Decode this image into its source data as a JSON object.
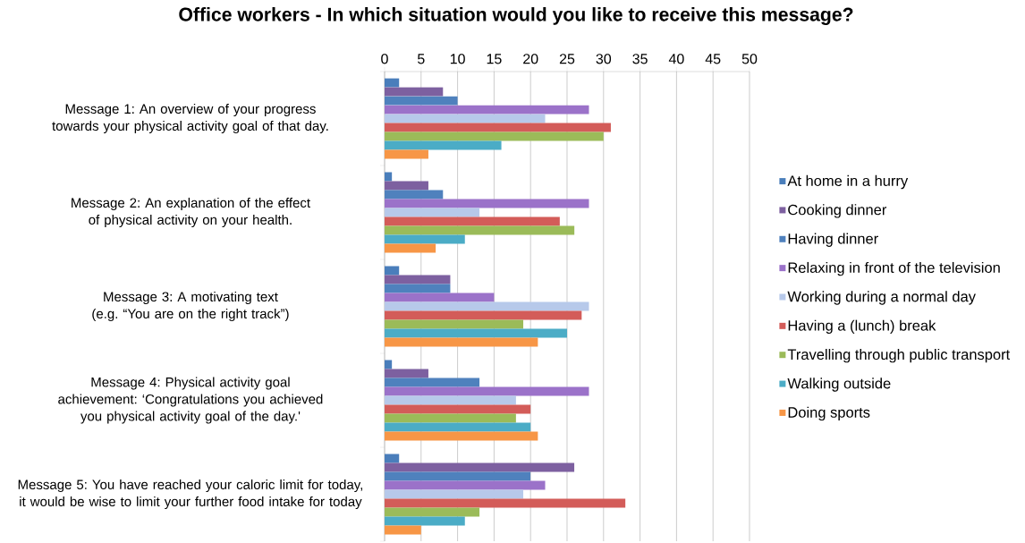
{
  "chart_data": {
    "type": "bar",
    "orientation": "horizontal",
    "title": "Office workers - In which situation would you like to receive this message?",
    "categories": [
      "Message 1: An overview of your progress towards your physical activity goal of that day.",
      "Message 2: An explanation of the effect of physical activity on your health.",
      "Message 3: A motivating text (e.g. “You are on the right track”)",
      "Message 4: Physical activity goal achievement: ‘Congratulations you achieved you physical activity goal of the day.'",
      "Message 5: You have reached your caloric limit for today, it would be wise to limit your further food intake for today"
    ],
    "series": [
      {
        "name": "At home in a hurry",
        "color": "#4a7ebb",
        "values": [
          2,
          1,
          2,
          1,
          2
        ]
      },
      {
        "name": "Cooking dinner",
        "color": "#7d60a0",
        "values": [
          8,
          6,
          9,
          6,
          26
        ]
      },
      {
        "name": "Having dinner",
        "color": "#4f81bd",
        "values": [
          10,
          8,
          9,
          13,
          20
        ]
      },
      {
        "name": "Relaxing in front of the television",
        "color": "#9b72c9",
        "values": [
          28,
          28,
          15,
          28,
          22
        ]
      },
      {
        "name": "Working during a normal day",
        "color": "#b7c9ea",
        "values": [
          22,
          13,
          28,
          18,
          19
        ]
      },
      {
        "name": "Having a (lunch) break",
        "color": "#d35c59",
        "values": [
          31,
          24,
          27,
          20,
          33
        ]
      },
      {
        "name": "Travelling through public transport",
        "color": "#9bbb59",
        "values": [
          30,
          26,
          19,
          18,
          13
        ]
      },
      {
        "name": "Walking outside",
        "color": "#4bacc6",
        "values": [
          16,
          11,
          25,
          20,
          11
        ]
      },
      {
        "name": "Doing sports",
        "color": "#f79646",
        "values": [
          6,
          7,
          21,
          21,
          5
        ]
      }
    ],
    "xlim": [
      0,
      50
    ],
    "xticks": [
      0,
      5,
      10,
      15,
      20,
      25,
      30,
      35,
      40,
      45,
      50
    ],
    "grid": "x",
    "legend": "right"
  }
}
